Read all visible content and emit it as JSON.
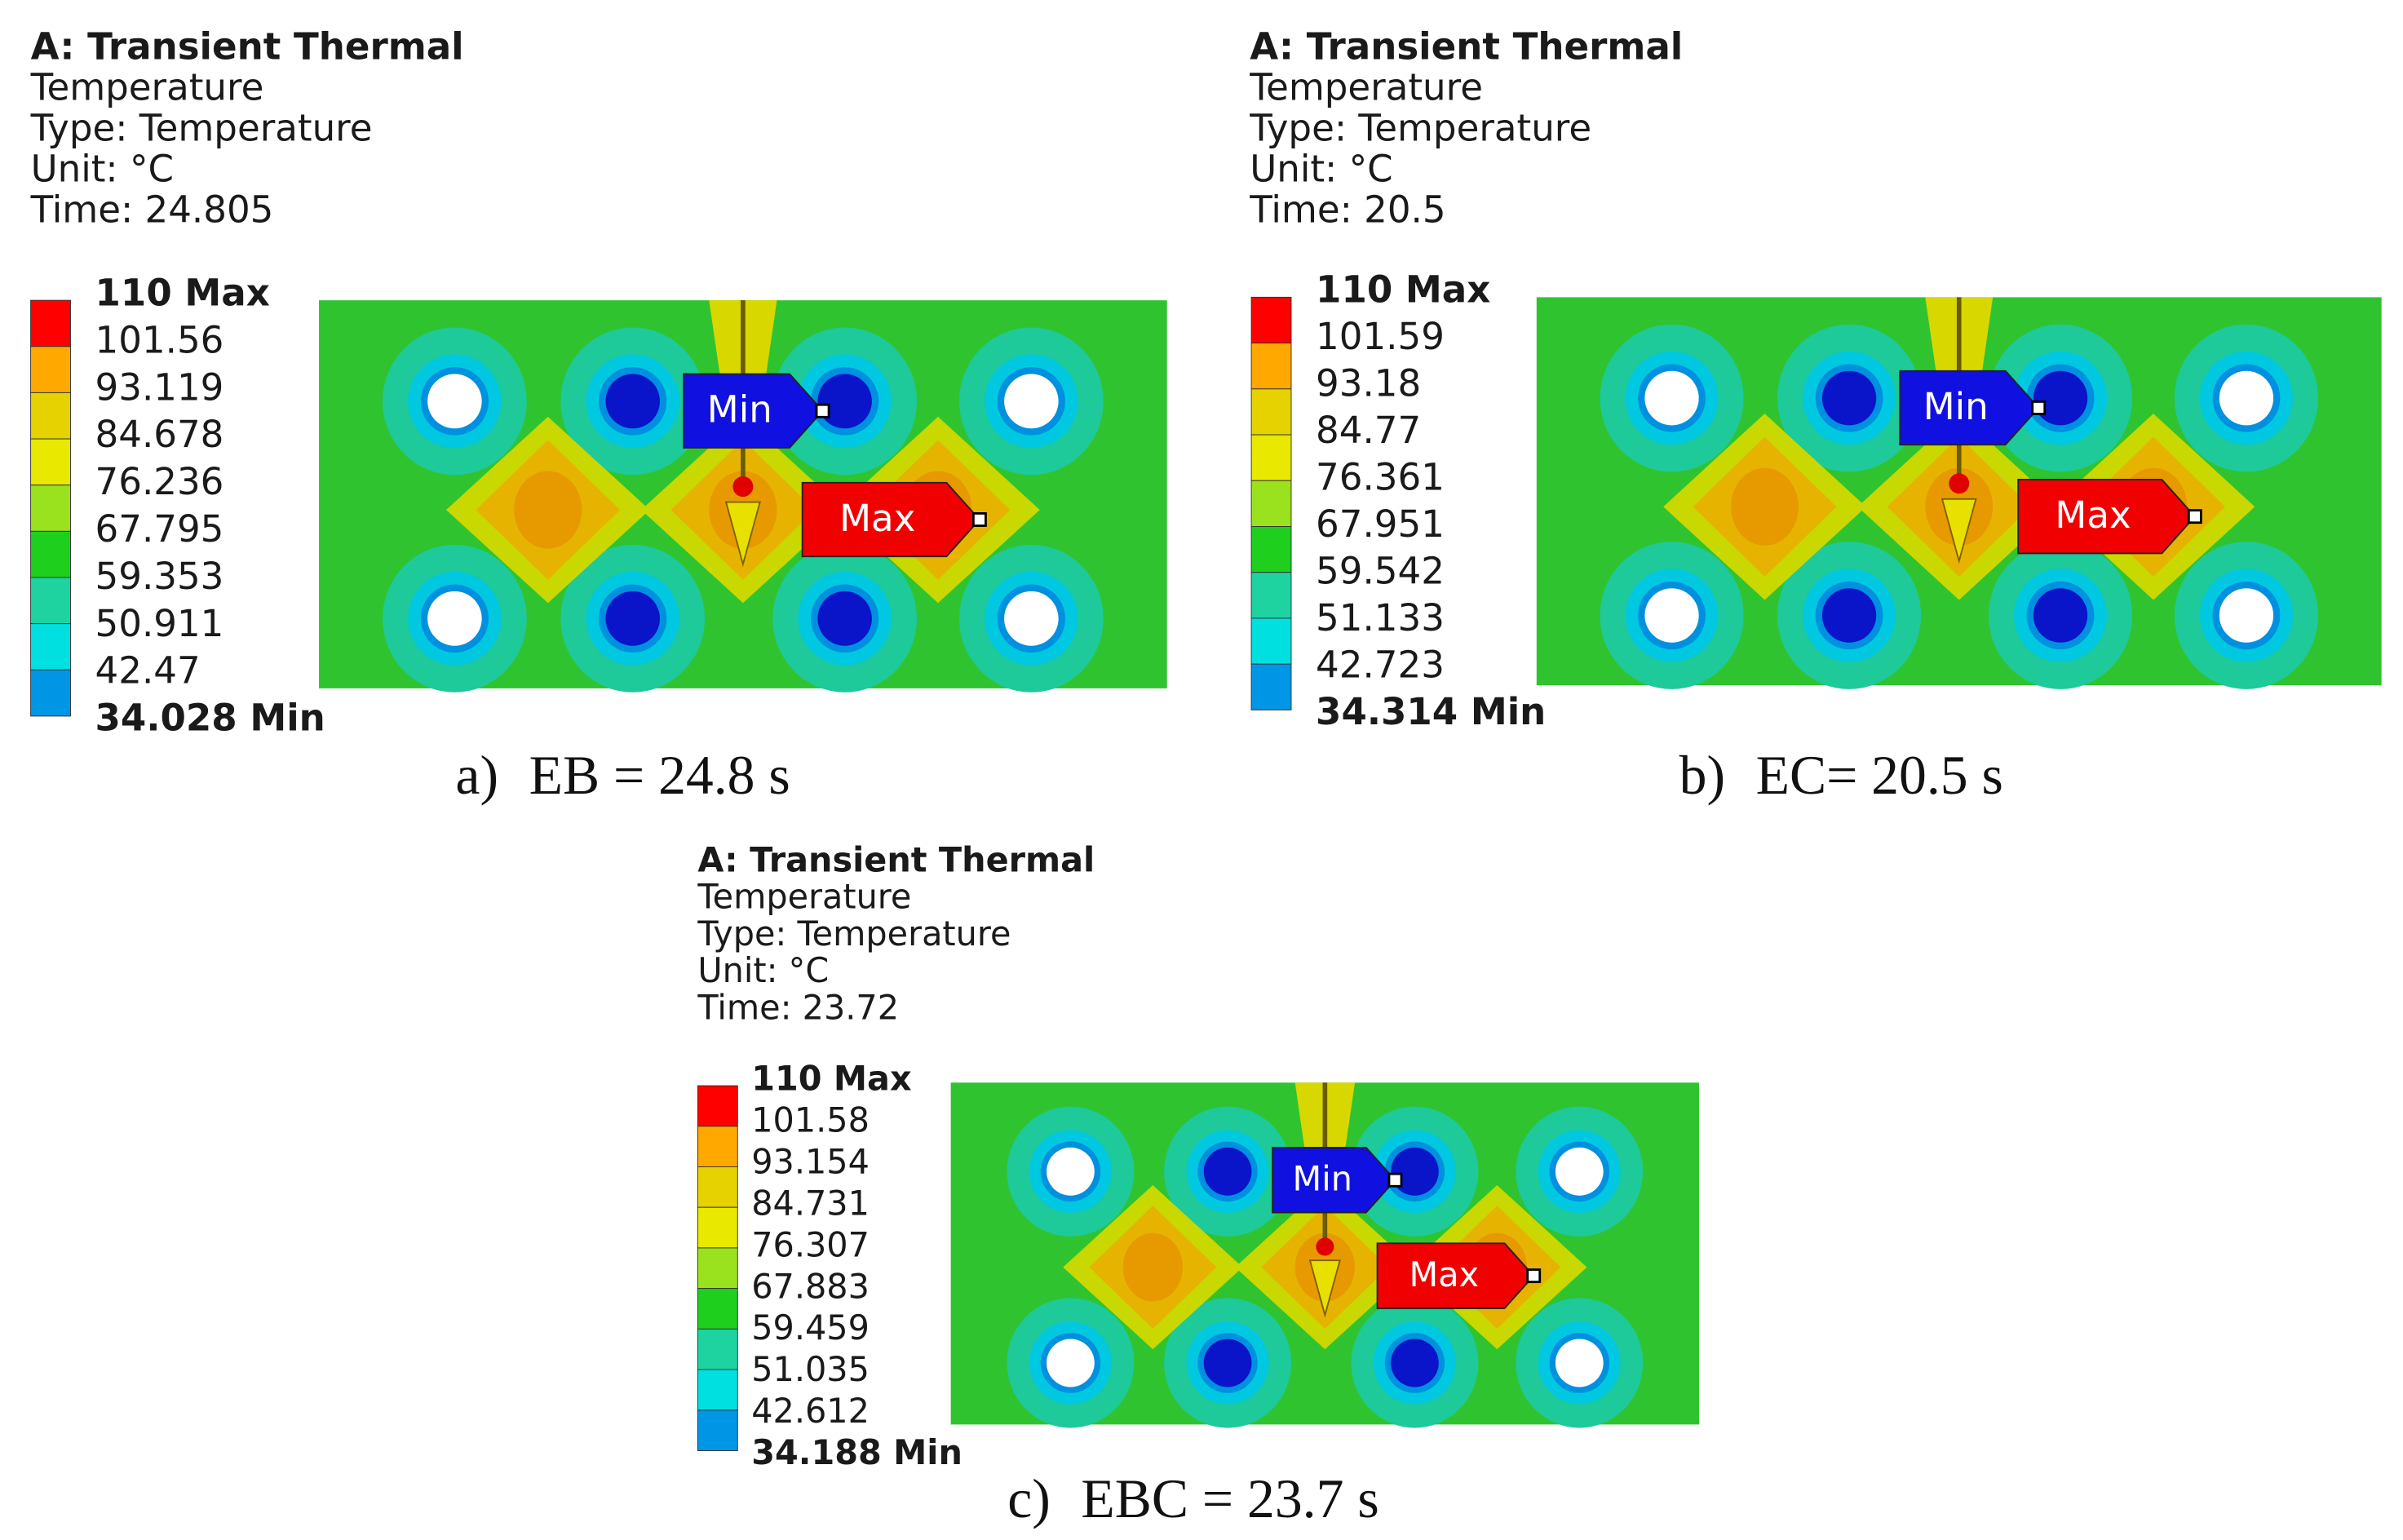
{
  "panels": [
    {
      "header": [
        "A: Transient Thermal",
        "Temperature",
        "Type: Temperature",
        "Unit: °C",
        "Time: 24.805"
      ],
      "legend": [
        "110 Max",
        "101.56",
        "93.119",
        "84.678",
        "76.236",
        "67.795",
        "59.353",
        "50.911",
        "42.47",
        "34.028 Min"
      ],
      "min_tag": "Min",
      "max_tag": "Max",
      "caption_label": "a)",
      "caption": "EB = 24.8 s"
    },
    {
      "header": [
        "A: Transient Thermal",
        "Temperature",
        "Type: Temperature",
        "Unit: °C",
        "Time: 20.5"
      ],
      "legend": [
        "110 Max",
        "101.59",
        "93.18",
        "84.77",
        "76.361",
        "67.951",
        "59.542",
        "51.133",
        "42.723",
        "34.314 Min"
      ],
      "min_tag": "Min",
      "max_tag": "Max",
      "caption_label": "b)",
      "caption": "EC= 20.5 s"
    },
    {
      "header": [
        "A: Transient Thermal",
        "Temperature",
        "Type: Temperature",
        "Unit: °C",
        "Time: 23.72"
      ],
      "legend": [
        "110 Max",
        "101.58",
        "93.154",
        "84.731",
        "76.307",
        "67.883",
        "59.459",
        "51.035",
        "42.612",
        "34.188 Min"
      ],
      "min_tag": "Min",
      "max_tag": "Max",
      "caption_label": "c)",
      "caption": "EBC = 23.7 s"
    }
  ]
}
